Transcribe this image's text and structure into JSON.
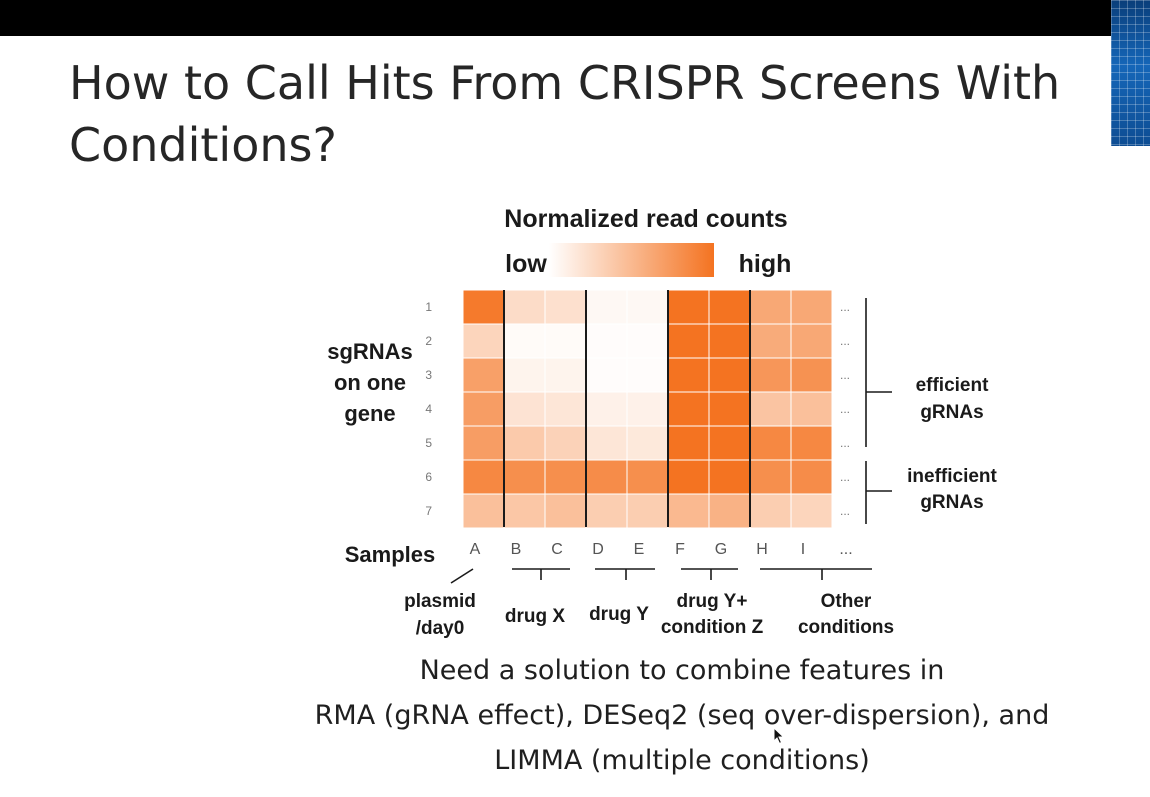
{
  "slide": {
    "title_lines": [
      "How to Call Hits From CRISPR Screens With",
      "Conditions?"
    ],
    "caption_lines": [
      "Need a solution to combine features in",
      "RMA (gRNA effect), DESeq2 (seq over-dispersion), and",
      "LIMMA (multiple conditions)"
    ]
  },
  "heatmap": {
    "legend_title": "Normalized read counts",
    "legend_low": "low",
    "legend_high": "high",
    "legend_color_low": "#ffffff",
    "legend_color_high": "#f47321",
    "row_axis_label_lines": [
      "sgRNAs",
      "on one",
      "gene"
    ],
    "rows": [
      "1",
      "2",
      "3",
      "4",
      "5",
      "6",
      "7"
    ],
    "samples_label": "Samples",
    "columns": [
      "A",
      "B",
      "C",
      "D",
      "E",
      "F",
      "G",
      "H",
      "I"
    ],
    "extra_marker": "...",
    "values": [
      [
        0.95,
        0.25,
        0.22,
        0.05,
        0.05,
        1.0,
        1.0,
        0.62,
        0.62
      ],
      [
        0.3,
        0.03,
        0.03,
        0.02,
        0.02,
        1.0,
        1.0,
        0.6,
        0.62
      ],
      [
        0.68,
        0.08,
        0.08,
        0.02,
        0.02,
        1.0,
        1.0,
        0.75,
        0.78
      ],
      [
        0.7,
        0.2,
        0.18,
        0.1,
        0.1,
        1.0,
        1.0,
        0.42,
        0.45
      ],
      [
        0.7,
        0.38,
        0.32,
        0.18,
        0.16,
        1.0,
        1.0,
        0.85,
        0.85
      ],
      [
        0.85,
        0.8,
        0.8,
        0.82,
        0.8,
        1.0,
        1.0,
        0.8,
        0.82
      ],
      [
        0.45,
        0.4,
        0.45,
        0.35,
        0.35,
        0.5,
        0.55,
        0.35,
        0.3
      ]
    ],
    "groups": [
      {
        "label_lines": [
          "plasmid",
          "/day0"
        ]
      },
      {
        "label_lines": [
          "drug X"
        ]
      },
      {
        "label_lines": [
          "drug Y"
        ]
      },
      {
        "label_lines": [
          "drug Y+",
          "condition Z"
        ]
      },
      {
        "label_lines": [
          "Other",
          "conditions"
        ]
      }
    ],
    "row_brackets": [
      {
        "label_lines": [
          "efficient",
          "gRNAs"
        ]
      },
      {
        "label_lines": [
          "inefficient",
          "gRNAs"
        ]
      }
    ]
  }
}
